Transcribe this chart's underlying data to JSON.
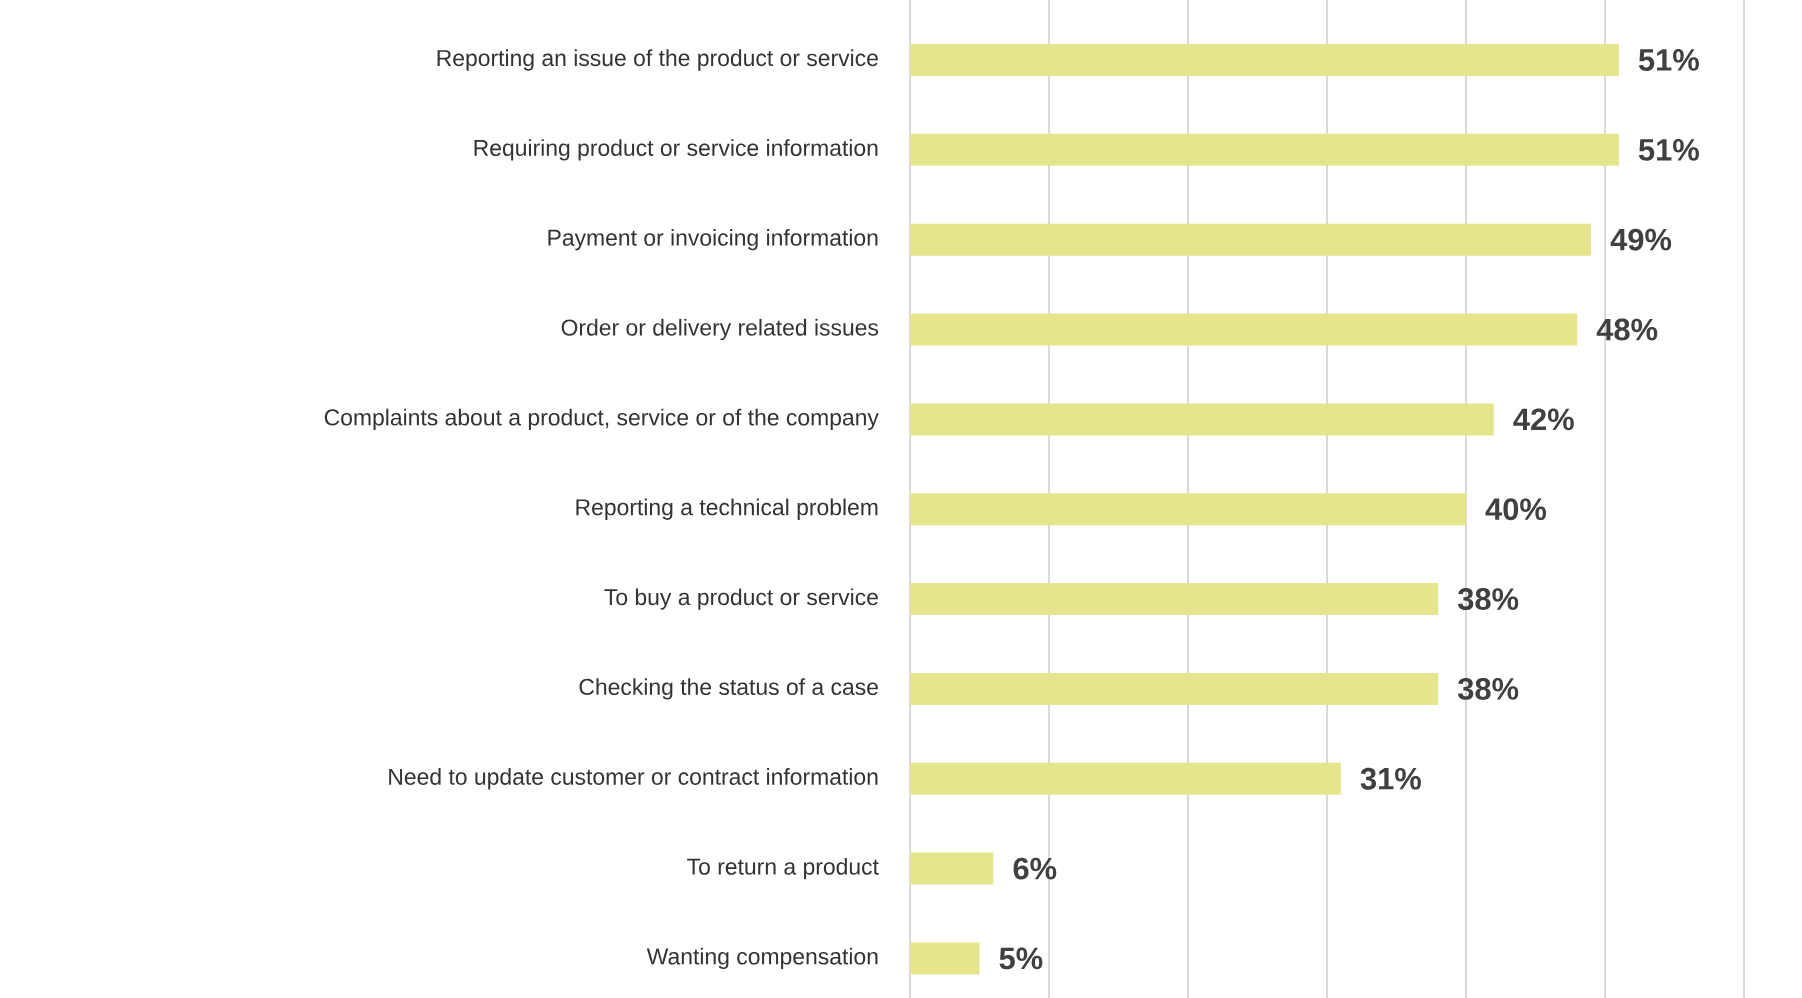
{
  "chart_data": {
    "type": "bar",
    "orientation": "horizontal",
    "categories": [
      "Reporting an issue of the product or service",
      "Requiring product or service information",
      "Payment or invoicing information",
      "Order or delivery related issues",
      "Complaints about a product, service or of the company",
      "Reporting a technical problem",
      "To buy a product or service",
      "Checking the status of a case",
      "Need to update customer or contract information",
      "To return a product",
      "Wanting compensation"
    ],
    "values": [
      51,
      51,
      49,
      48,
      42,
      40,
      38,
      38,
      31,
      6,
      5
    ],
    "value_labels": [
      "51%",
      "51%",
      "49%",
      "48%",
      "42%",
      "40%",
      "38%",
      "38%",
      "31%",
      "6%",
      "5%"
    ],
    "color": "#e5e58e",
    "xlim": [
      0,
      60
    ],
    "xticks": [
      {
        "value": 0,
        "label": null
      },
      {
        "value": 10,
        "label": null
      },
      {
        "value": 20,
        "label": null
      },
      {
        "value": 30,
        "label": null
      },
      {
        "value": 40,
        "label": null
      },
      {
        "value": 50,
        "label": null
      },
      {
        "value": 60,
        "label": null
      }
    ],
    "grid": "x",
    "tick_labels": "y"
  }
}
